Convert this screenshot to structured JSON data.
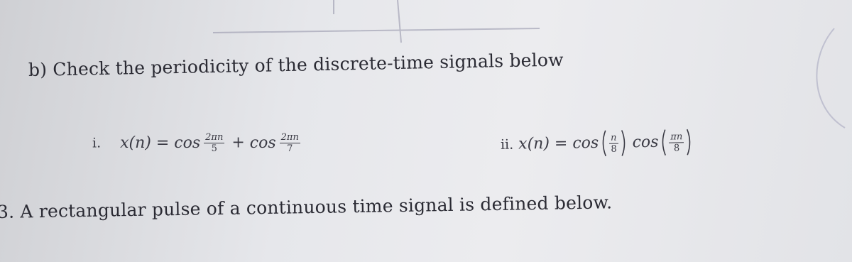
{
  "part_b": {
    "label": "b)",
    "text": "Check the periodicity of the discrete-time signals below"
  },
  "items": [
    {
      "label": "i.",
      "lhs": "x(n) =",
      "terms": [
        {
          "fn": "cos",
          "num": "2πn",
          "den": "5"
        },
        {
          "op": "+",
          "fn": "cos",
          "num": "2πn",
          "den": "7"
        }
      ]
    },
    {
      "label": "ii.",
      "lhs": "x(n) =",
      "terms": [
        {
          "fn": "cos",
          "num": "n",
          "den": "8"
        },
        {
          "fn": "cos",
          "num": "πn",
          "den": "8"
        }
      ]
    }
  ],
  "part_3": {
    "label": "3.",
    "text": "A rectangular pulse of a continuous time signal is defined below."
  }
}
